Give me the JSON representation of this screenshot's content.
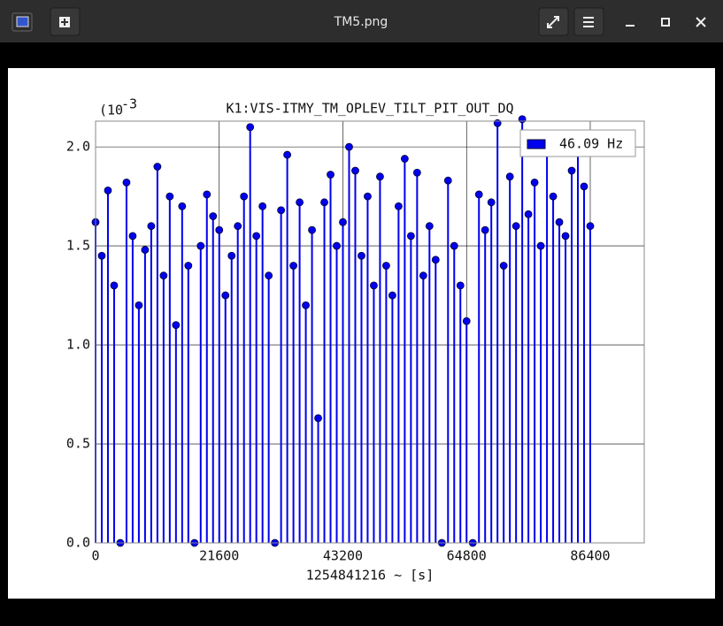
{
  "window": {
    "title": "TM5.png"
  },
  "chart_data": {
    "type": "stem",
    "title": "K1:VIS-ITMY_TM_OPLEV_TILT_PIT_OUT_DQ",
    "y_scale_label": "(10",
    "y_scale_exponent": "-3",
    "xlabel": "1254841216 ~ [s]",
    "x": [
      0,
      1080,
      2160,
      3240,
      4320,
      5400,
      6480,
      7560,
      8640,
      9720,
      10800,
      11880,
      12960,
      14040,
      15120,
      16200,
      17280,
      18360,
      19440,
      20520,
      21600,
      22680,
      23760,
      24840,
      25920,
      27000,
      28080,
      29160,
      30240,
      31320,
      32400,
      33480,
      34560,
      35640,
      36720,
      37800,
      38880,
      39960,
      41040,
      42120,
      43200,
      44280,
      45360,
      46440,
      47520,
      48600,
      49680,
      50760,
      51840,
      52920,
      54000,
      55080,
      56160,
      57240,
      58320,
      59400,
      60480,
      61560,
      62640,
      63720,
      64800,
      65880,
      66960,
      68040,
      69120,
      70200,
      71280,
      72360,
      73440,
      74520,
      75600,
      76680,
      77760,
      78840,
      79920,
      81000,
      82080,
      83160,
      84240,
      85320,
      86400
    ],
    "series": [
      {
        "name": "46.09 Hz",
        "color": "#0000ee",
        "values": [
          1.62,
          1.45,
          1.78,
          1.3,
          0,
          1.82,
          1.55,
          1.2,
          1.48,
          1.6,
          1.9,
          1.35,
          1.75,
          1.1,
          1.7,
          1.4,
          0,
          1.5,
          1.76,
          1.65,
          1.58,
          1.25,
          1.45,
          1.6,
          1.75,
          2.1,
          1.55,
          1.7,
          1.35,
          0,
          1.68,
          1.96,
          1.4,
          1.72,
          1.2,
          1.58,
          0.63,
          1.72,
          1.86,
          1.5,
          1.62,
          2.0,
          1.88,
          1.45,
          1.75,
          1.3,
          1.85,
          1.4,
          1.25,
          1.7,
          1.94,
          1.55,
          1.87,
          1.35,
          1.6,
          1.43,
          0,
          1.83,
          1.5,
          1.3,
          1.12,
          0,
          1.76,
          1.58,
          1.72,
          2.12,
          1.4,
          1.85,
          1.6,
          2.14,
          1.66,
          1.82,
          1.5,
          2.05,
          1.75,
          1.62,
          1.55,
          1.88,
          2.05,
          1.8,
          1.6
        ]
      }
    ],
    "xlim": [
      0,
      95830
    ],
    "xticks": [
      0,
      21600,
      43200,
      64800,
      86400
    ],
    "ylim": [
      0,
      2.13
    ],
    "yticks": [
      {
        "value": 0,
        "label": "0.0"
      },
      0.5,
      {
        "value": 1,
        "label": "1.0"
      },
      1.5,
      {
        "value": 2,
        "label": "2.0"
      }
    ],
    "grid": true,
    "legend": "upper right"
  }
}
